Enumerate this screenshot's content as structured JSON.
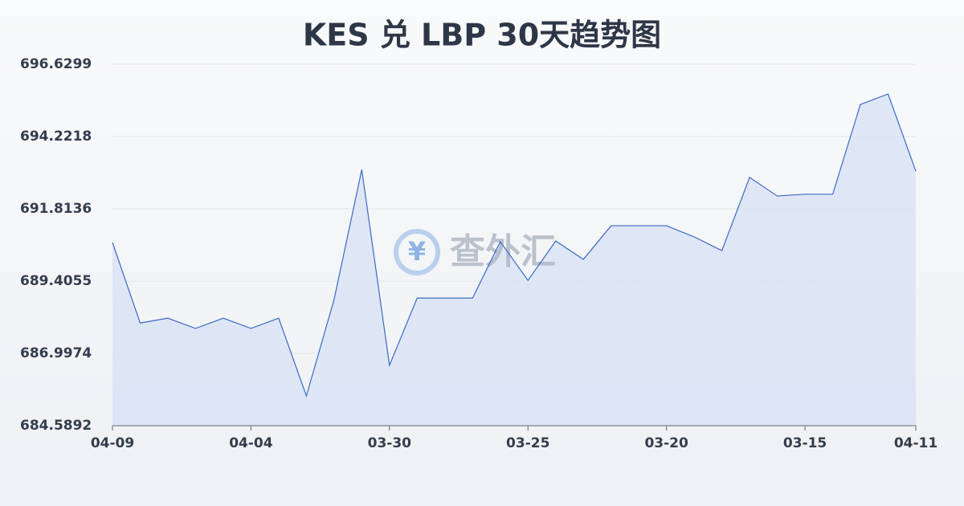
{
  "chart_data": {
    "type": "line",
    "title": "KES 兑 LBP 30天趋势图",
    "watermark": {
      "icon": "¥",
      "text": "查外汇"
    },
    "categories": [
      "04-09",
      null,
      null,
      null,
      null,
      "04-04",
      null,
      null,
      null,
      null,
      "03-30",
      null,
      null,
      null,
      null,
      "03-25",
      null,
      null,
      null,
      null,
      "03-20",
      null,
      null,
      null,
      null,
      "03-15",
      null,
      null,
      null,
      "04-11"
    ],
    "values": [
      690.69,
      688.01,
      688.17,
      687.83,
      688.17,
      687.83,
      688.17,
      685.58,
      688.79,
      693.12,
      686.6,
      688.84,
      688.84,
      688.84,
      690.72,
      689.43,
      690.74,
      690.13,
      691.25,
      691.25,
      691.25,
      690.88,
      690.42,
      692.86,
      692.24,
      692.3,
      692.3,
      695.29,
      695.64,
      693.07
    ],
    "color": "#3a6bc4",
    "fill": "#dbe3f6",
    "ylim": [
      684.5892,
      696.6299
    ],
    "yticks": [
      684.5892,
      686.9974,
      689.4055,
      691.8136,
      694.2218,
      696.6299
    ],
    "grid": true
  }
}
